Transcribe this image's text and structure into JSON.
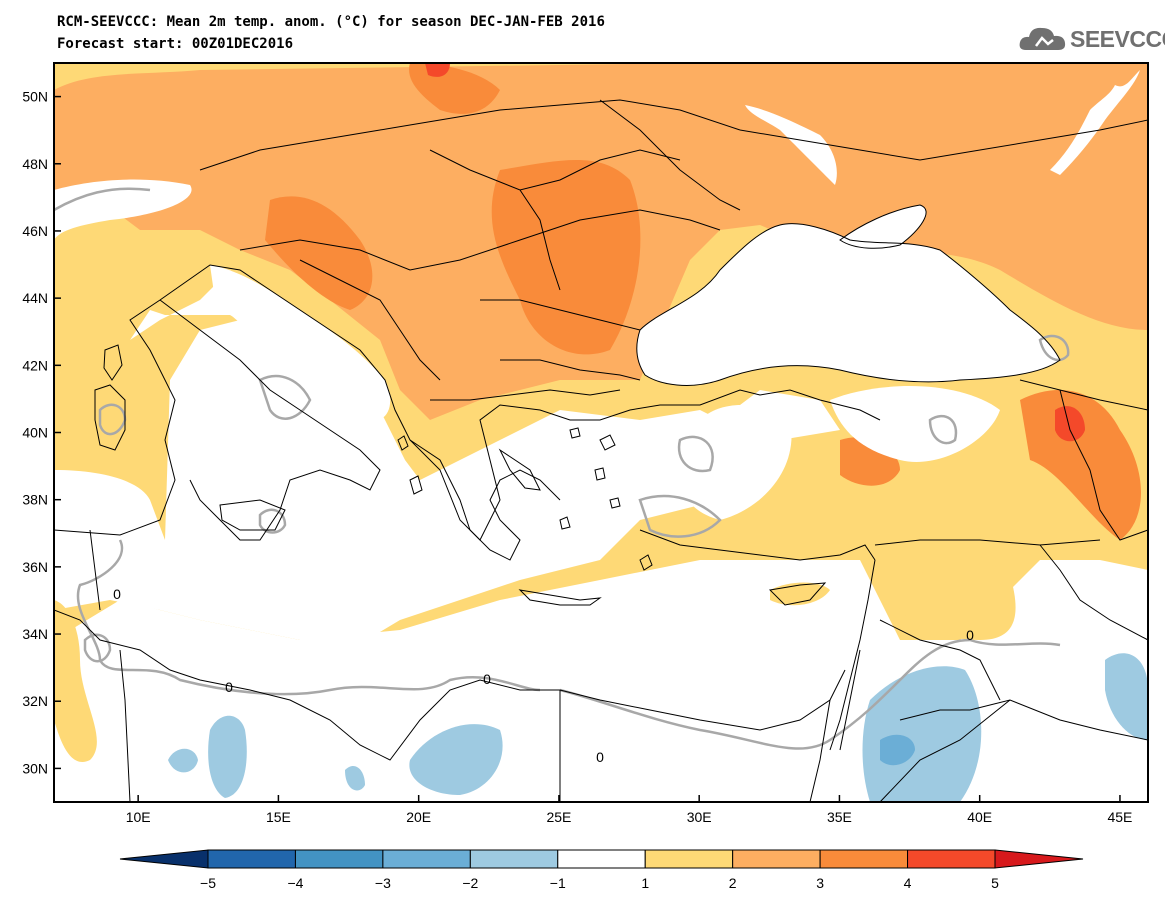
{
  "header": {
    "title_line1": "RCM-SEEVCCC: Mean 2m temp. anom. (°C) for season DEC-JAN-FEB 2016",
    "title_line2": "Forecast start: 00Z01DEC2016"
  },
  "logo": {
    "text": "SEEVCCC",
    "icon": "cloud-icon"
  },
  "map": {
    "lon_range": [
      7,
      46
    ],
    "lat_range": [
      29,
      51
    ],
    "lon_ticks": [
      "10E",
      "15E",
      "20E",
      "25E",
      "30E",
      "35E",
      "40E",
      "45E"
    ],
    "lat_ticks": [
      "50N",
      "48N",
      "46N",
      "44N",
      "42N",
      "40N",
      "38N",
      "36N",
      "34N",
      "32N",
      "30N"
    ],
    "contour_label": "0"
  },
  "colorbar": {
    "labels": [
      "−5",
      "−4",
      "−3",
      "−2",
      "−1",
      "1",
      "2",
      "3",
      "4",
      "5"
    ],
    "colors": [
      "#08306b",
      "#2166ac",
      "#4393c3",
      "#6baed6",
      "#9ecae1",
      "#ffffff",
      "#fed976",
      "#fdae61",
      "#f98b3a",
      "#f4492a",
      "#d7191c"
    ]
  }
}
